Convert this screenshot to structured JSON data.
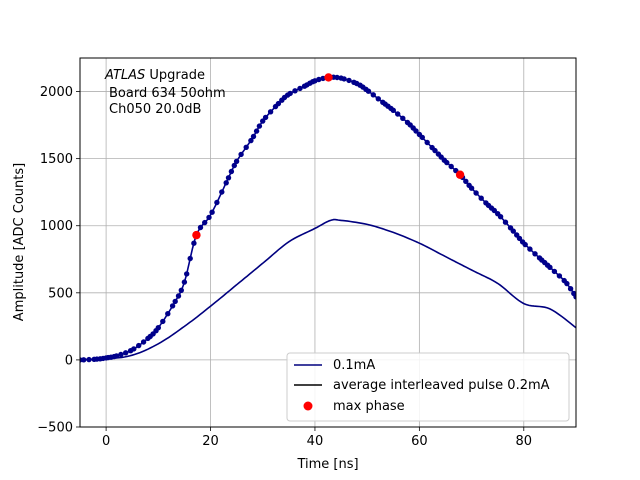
{
  "chart_data": {
    "type": "line",
    "xlabel": "Time [ns]",
    "ylabel": "Amplitude [ADC Counts]",
    "xlim": [
      -5,
      90
    ],
    "ylim": [
      -500,
      2250
    ],
    "xticks": [
      0,
      20,
      40,
      60,
      80
    ],
    "yticks": [
      -500,
      0,
      500,
      1000,
      1500,
      2000
    ],
    "grid": true,
    "annotation": {
      "line1_italic": "ATLAS",
      "line1_rest": " Upgrade",
      "line2": "Board 634 50ohm",
      "line3": "Ch050 20.0dB"
    },
    "legend_position": "lower-right",
    "series": [
      {
        "name": "0.1mA",
        "kind": "line",
        "color": "#00007f",
        "points": [
          [
            -5,
            3
          ],
          [
            0,
            8
          ],
          [
            5,
            35
          ],
          [
            10,
            120
          ],
          [
            15,
            250
          ],
          [
            20,
            400
          ],
          [
            25,
            560
          ],
          [
            30,
            720
          ],
          [
            35,
            880
          ],
          [
            40,
            980
          ],
          [
            43,
            1040
          ],
          [
            45,
            1040
          ],
          [
            50,
            1010
          ],
          [
            55,
            950
          ],
          [
            60,
            870
          ],
          [
            65,
            770
          ],
          [
            70,
            670
          ],
          [
            75,
            570
          ],
          [
            80,
            420
          ],
          [
            85,
            380
          ],
          [
            90,
            240
          ]
        ]
      },
      {
        "name": "average interleaved pulse 0.2mA",
        "kind": "line-dots",
        "color": "#000000",
        "dot_color": "#00008b",
        "points": [
          [
            -5,
            0
          ],
          [
            -2,
            5
          ],
          [
            0,
            15
          ],
          [
            2,
            30
          ],
          [
            5,
            75
          ],
          [
            8,
            160
          ],
          [
            10,
            240
          ],
          [
            13,
            420
          ],
          [
            15,
            580
          ],
          [
            17.3,
            930
          ],
          [
            20,
            1080
          ],
          [
            23,
            1320
          ],
          [
            25,
            1480
          ],
          [
            28,
            1650
          ],
          [
            30,
            1780
          ],
          [
            33,
            1910
          ],
          [
            35,
            1980
          ],
          [
            38,
            2040
          ],
          [
            40,
            2080
          ],
          [
            42.6,
            2105
          ],
          [
            45,
            2100
          ],
          [
            48,
            2060
          ],
          [
            50,
            2010
          ],
          [
            53,
            1920
          ],
          [
            55,
            1860
          ],
          [
            58,
            1760
          ],
          [
            60,
            1680
          ],
          [
            63,
            1560
          ],
          [
            65,
            1480
          ],
          [
            67.8,
            1380
          ],
          [
            70,
            1280
          ],
          [
            73,
            1160
          ],
          [
            75,
            1090
          ],
          [
            78,
            960
          ],
          [
            80,
            870
          ],
          [
            83,
            760
          ],
          [
            85,
            690
          ],
          [
            88,
            580
          ],
          [
            90,
            470
          ]
        ]
      },
      {
        "name": "max phase",
        "kind": "scatter",
        "color": "#ff0000",
        "points": [
          [
            17.3,
            930
          ],
          [
            42.6,
            2105
          ],
          [
            67.8,
            1380
          ]
        ]
      }
    ]
  }
}
